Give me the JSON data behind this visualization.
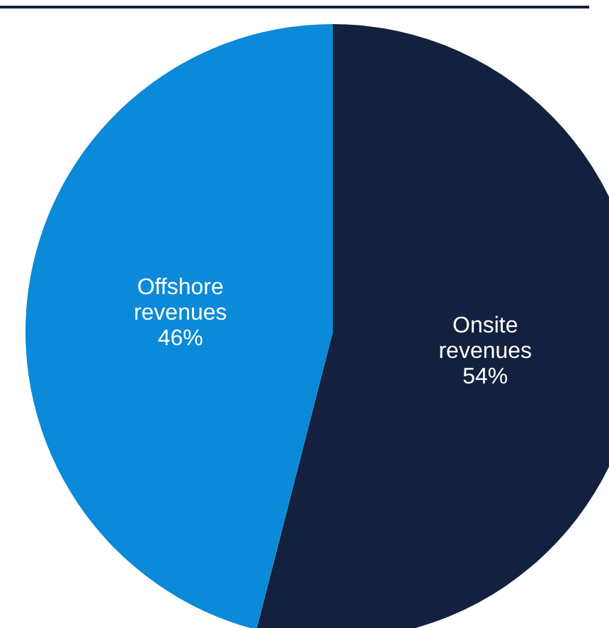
{
  "chart_data": {
    "type": "pie",
    "categories": [
      "Onsite revenues",
      "Offshore revenues"
    ],
    "values": [
      54,
      46
    ],
    "value_labels": [
      "54%",
      "46%"
    ],
    "colors": [
      "#13213f",
      "#0a8ad8"
    ]
  }
}
